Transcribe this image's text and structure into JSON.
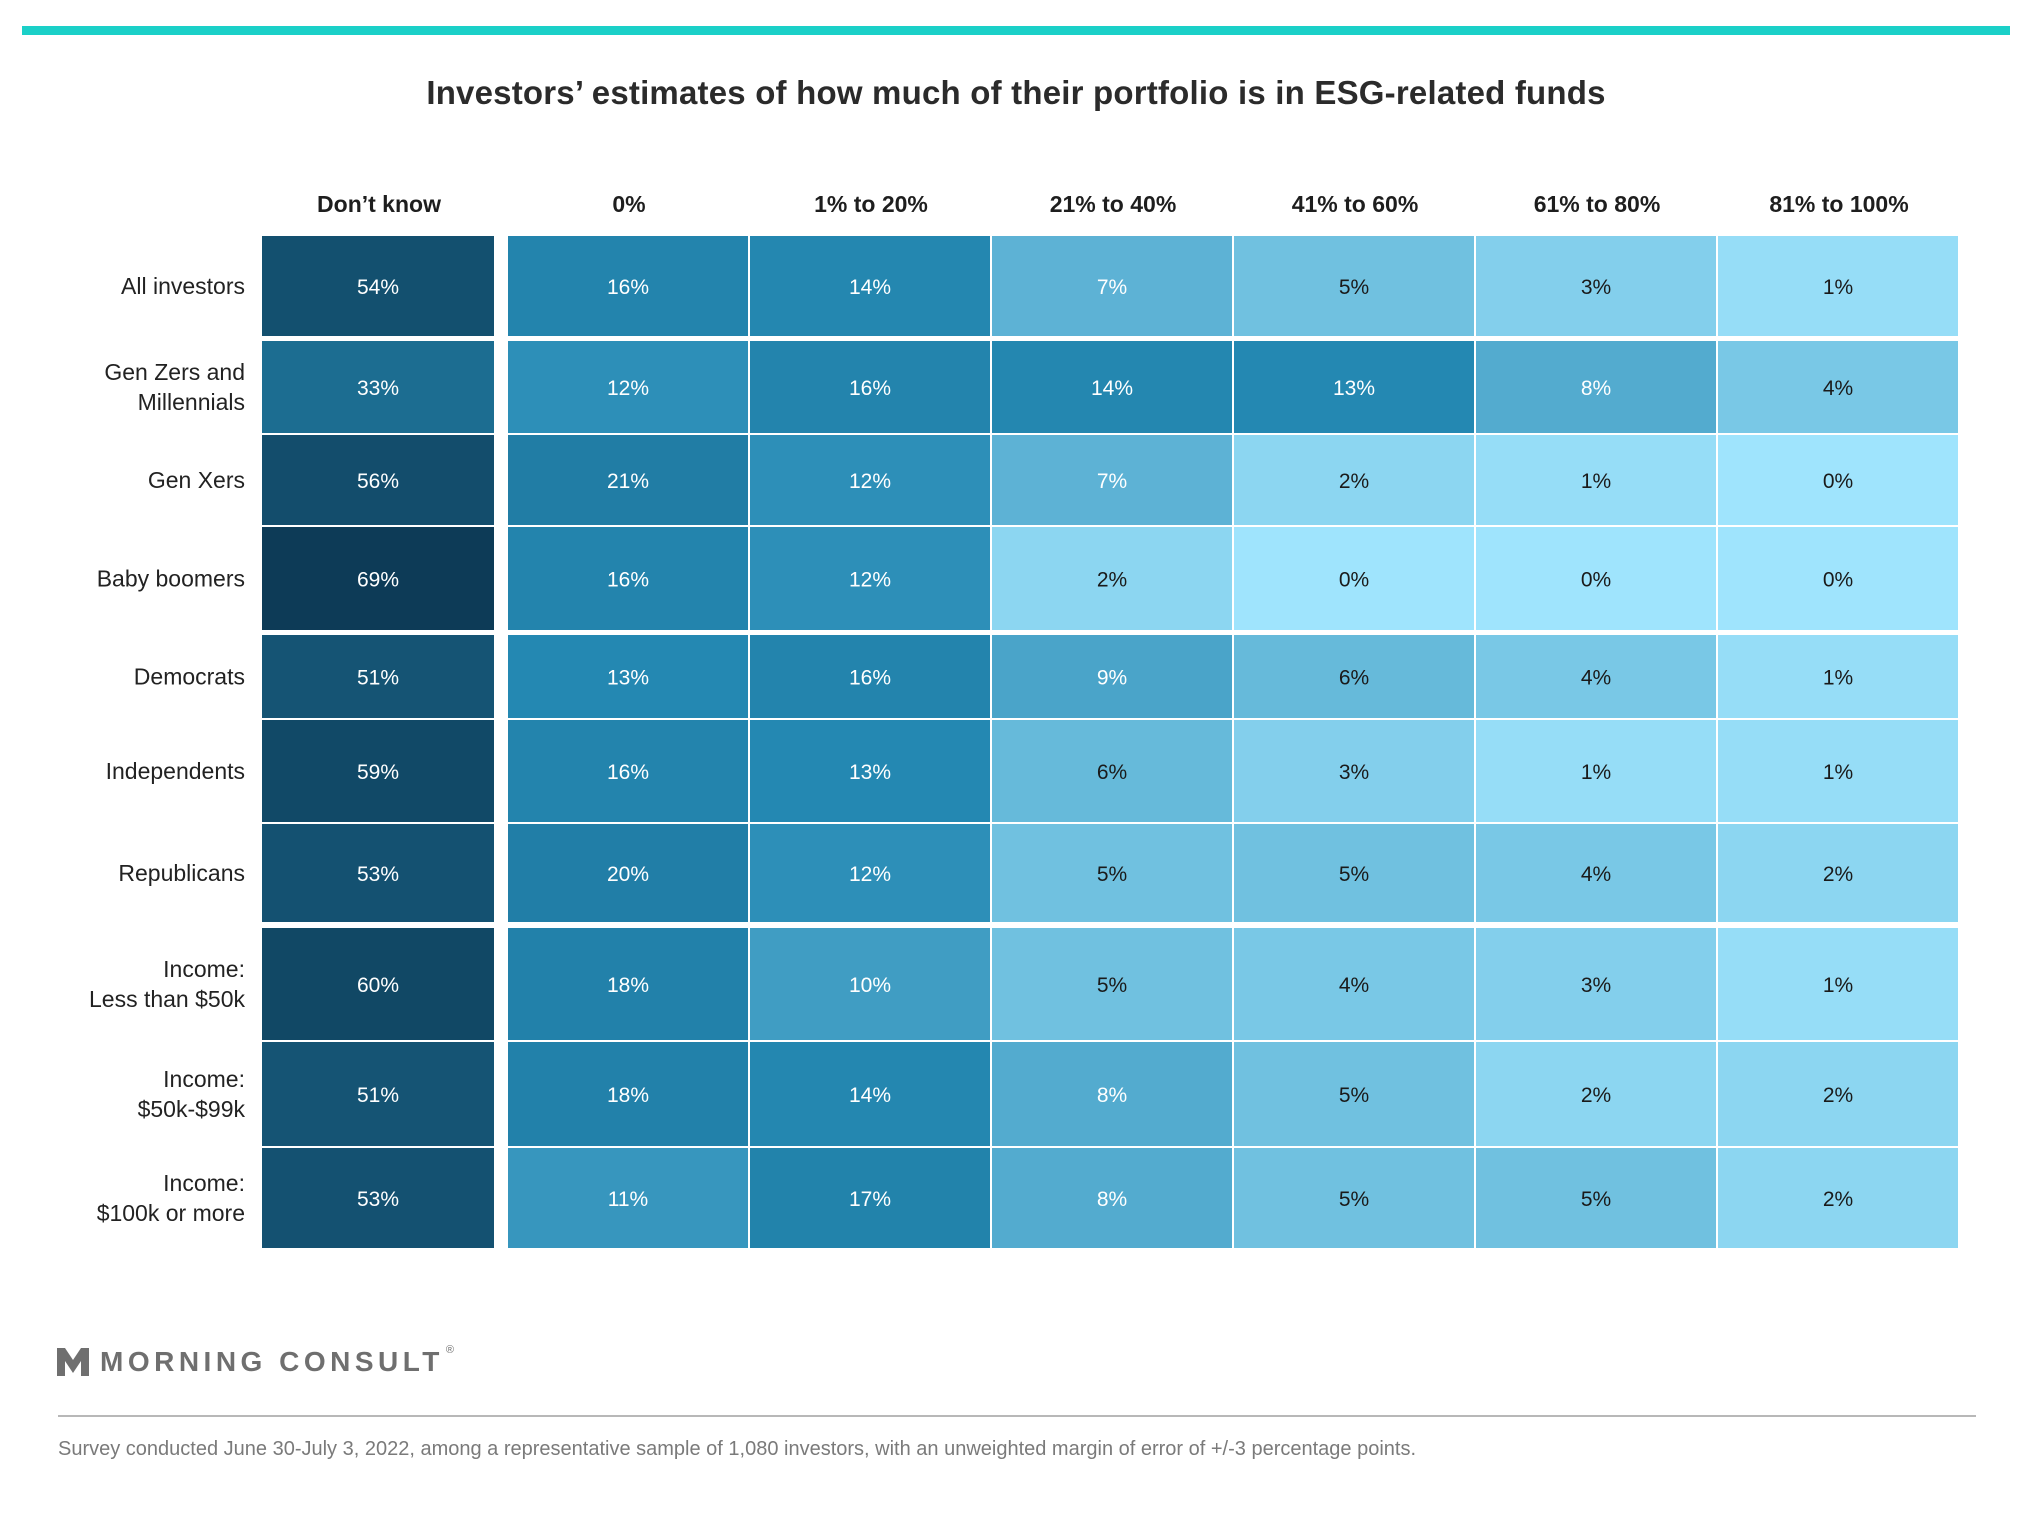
{
  "title": "Investors’ estimates of how much of their portfolio is in ESG-related funds",
  "logo": {
    "name": "MORNING CONSULT",
    "reg": "®"
  },
  "footnote": "Survey conducted June 30-July 3, 2022, among a representative sample of 1,080 investors, with an unweighted margin of error of +/-3 percentage points.",
  "colors": {
    "accent_bar": "#1bd0c8",
    "scale_dark": "#0d3a55",
    "scale_light": "#9fe4fd"
  },
  "chart_data": {
    "type": "heatmap",
    "title": "Investors’ estimates of how much of their portfolio is in ESG-related funds",
    "columns": [
      "Don’t know",
      "0%",
      "1% to 20%",
      "21% to 40%",
      "41% to 60%",
      "61% to 80%",
      "81% to 100%"
    ],
    "rows": [
      {
        "label": [
          "All investors"
        ],
        "values": [
          54,
          16,
          14,
          7,
          5,
          3,
          1
        ]
      },
      {
        "label": [
          "Gen Zers and",
          "Millennials"
        ],
        "values": [
          33,
          12,
          16,
          14,
          13,
          8,
          4
        ]
      },
      {
        "label": [
          "Gen Xers"
        ],
        "values": [
          56,
          21,
          12,
          7,
          2,
          1,
          0
        ]
      },
      {
        "label": [
          "Baby boomers"
        ],
        "values": [
          69,
          16,
          12,
          2,
          0,
          0,
          0
        ]
      },
      {
        "label": [
          "Democrats"
        ],
        "values": [
          51,
          13,
          16,
          9,
          6,
          4,
          1
        ]
      },
      {
        "label": [
          "Independents"
        ],
        "values": [
          59,
          16,
          13,
          6,
          3,
          1,
          1
        ]
      },
      {
        "label": [
          "Republicans"
        ],
        "values": [
          53,
          20,
          12,
          5,
          5,
          4,
          2
        ]
      },
      {
        "label": [
          "Income:",
          "Less than $50k"
        ],
        "values": [
          60,
          18,
          10,
          5,
          4,
          3,
          1
        ]
      },
      {
        "label": [
          "Income:",
          "$50k-$99k"
        ],
        "values": [
          51,
          18,
          14,
          8,
          5,
          2,
          2
        ]
      },
      {
        "label": [
          "Income:",
          "$100k or more"
        ],
        "values": [
          53,
          11,
          17,
          8,
          5,
          5,
          2
        ]
      }
    ],
    "groups": [
      [
        0
      ],
      [
        1,
        2,
        3
      ],
      [
        4,
        5,
        6
      ],
      [
        7,
        8,
        9
      ]
    ],
    "value_suffix": "%"
  }
}
